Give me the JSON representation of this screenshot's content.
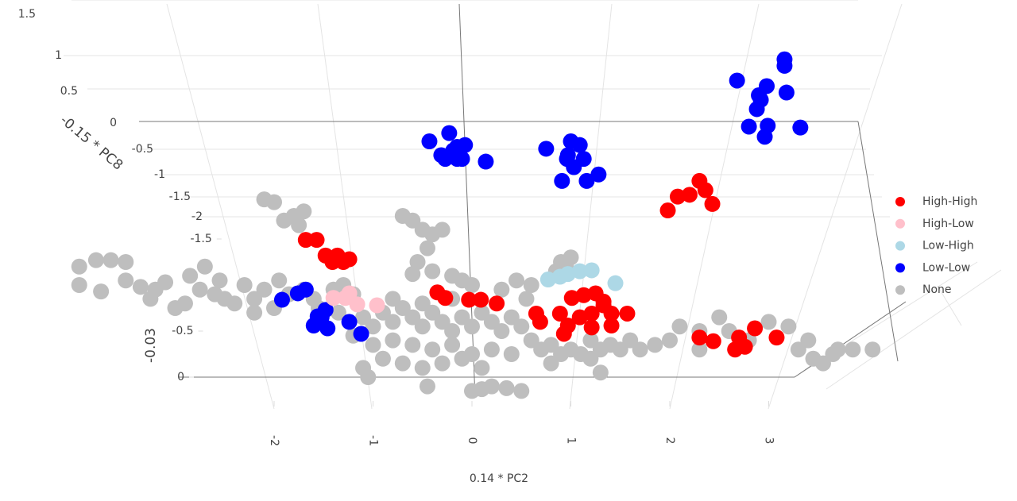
{
  "chart_data": {
    "type": "scatter",
    "x_label": "0.14 * PC2",
    "z_label": "-0.15 * PC8",
    "y_label": "-0.03",
    "xlim": [
      -4.5,
      5
    ],
    "ylim": [
      0.4,
      -4
    ],
    "xticks": [
      -2,
      -1,
      0,
      1,
      2,
      3
    ],
    "yticks": [
      -1.5,
      -0.5,
      0
    ],
    "zticks": [
      1.5,
      1,
      0.5,
      0,
      -0.5,
      -1,
      -1.5,
      -2
    ],
    "legend": "right",
    "series": [
      {
        "name": "High-High",
        "color": "#ff0000",
        "x": [
          2.3,
          2.08,
          2.2,
          2.36,
          2.43,
          1.98,
          -1.68,
          -1.57,
          -1.48,
          -1.36,
          -1.24,
          -1.41,
          -1.3,
          -0.35,
          -0.27,
          -0.03,
          0.09,
          0.25,
          1.01,
          1.13,
          1.25,
          1.33,
          1.21,
          1.09,
          0.89,
          1.41,
          1.57,
          0.97,
          1.21,
          1.41,
          0.65,
          0.69,
          0.93,
          1.33,
          2.3,
          2.44,
          2.66,
          2.76,
          2.86,
          3.08,
          2.7
        ],
        "values": [
          -2.13,
          -1.96,
          -1.98,
          -2.03,
          -1.88,
          -1.81,
          -1.49,
          -1.49,
          -1.32,
          -1.32,
          -1.28,
          -1.25,
          -1.25,
          -0.92,
          -0.86,
          -0.84,
          -0.84,
          -0.8,
          -0.86,
          -0.89,
          -0.91,
          -0.82,
          -0.69,
          -0.65,
          -0.69,
          -0.69,
          -0.69,
          -0.56,
          -0.54,
          -0.56,
          -0.69,
          -0.6,
          -0.47,
          -0.78,
          -0.43,
          -0.39,
          -0.3,
          -0.33,
          -0.53,
          -0.43,
          -0.43
        ]
      },
      {
        "name": "High-Low",
        "color": "#ffc0cb",
        "x": [
          -1.4,
          -1.28,
          -1.16,
          -0.96,
          -1.24
        ],
        "values": [
          -0.86,
          -0.86,
          -0.79,
          -0.78,
          -0.91
        ]
      },
      {
        "name": "Low-High",
        "color": "#add8e6",
        "x": [
          0.77,
          0.89,
          0.97,
          1.09,
          1.21,
          1.45
        ],
        "values": [
          -1.06,
          -1.09,
          -1.12,
          -1.15,
          -1.16,
          -1.02
        ]
      },
      {
        "name": "Low-Low",
        "color": "#0000ff",
        "x": [
          -0.43,
          -0.23,
          -0.15,
          -0.07,
          -0.27,
          -0.15,
          -0.1,
          0.14,
          -0.19,
          -0.31,
          0.75,
          1.0,
          1.09,
          0.96,
          1.13,
          1.03,
          1.28,
          0.91,
          1.16,
          0.97,
          2.68,
          3.16,
          3.16,
          2.98,
          2.9,
          3.18,
          2.88,
          2.8,
          2.99,
          2.96,
          3.32,
          2.92,
          -1.92,
          -1.76,
          -1.68,
          -1.48,
          -1.52,
          -1.6,
          -1.46,
          -1.24,
          -1.12,
          -1.56
        ],
        "values": [
          -2.56,
          -2.65,
          -2.5,
          -2.52,
          -2.37,
          -2.37,
          -2.37,
          -2.34,
          -2.46,
          -2.41,
          -2.48,
          -2.56,
          -2.52,
          -2.37,
          -2.37,
          -2.28,
          -2.2,
          -2.13,
          -2.13,
          -2.41,
          -3.22,
          -3.45,
          -3.38,
          -3.16,
          -3.06,
          -3.09,
          -2.91,
          -2.72,
          -2.73,
          -2.61,
          -2.71,
          -3.01,
          -0.84,
          -0.91,
          -0.95,
          -0.73,
          -0.65,
          -0.56,
          -0.53,
          -0.6,
          -0.47,
          -0.66
        ]
      },
      {
        "name": "None",
        "color": "#bebebe",
        "x": [
          -2.1,
          -2.0,
          -1.8,
          -1.7,
          -1.75,
          -1.9,
          -3.97,
          -3.8,
          -3.65,
          -3.5,
          -3.97,
          -3.75,
          -3.5,
          -3.35,
          -3.1,
          -3.2,
          -3.25,
          -3.0,
          -2.9,
          -2.85,
          -2.7,
          -2.75,
          -2.55,
          -2.5,
          -2.3,
          -2.6,
          -2.4,
          -2.2,
          -2.1,
          -2.0,
          -2.2,
          -1.95,
          -1.85,
          -1.7,
          -1.6,
          -1.4,
          -1.3,
          -1.2,
          -1.55,
          -1.35,
          -0.7,
          -0.6,
          -0.5,
          -0.4,
          -0.3,
          -0.45,
          -0.55,
          -0.6,
          -0.4,
          -0.2,
          -0.1,
          0.0,
          -1.1,
          -1.0,
          -0.9,
          -0.8,
          -0.7,
          -0.6,
          -0.5,
          -0.4,
          -0.3,
          -0.2,
          -0.1,
          0.0,
          0.1,
          0.2,
          0.3,
          0.4,
          0.5,
          -0.8,
          -0.6,
          -0.4,
          -0.2,
          0.0,
          0.2,
          0.4,
          -1.2,
          -1.0,
          -0.9,
          -0.7,
          -0.5,
          -0.3,
          -0.1,
          0.1,
          -0.8,
          -0.5,
          -0.2,
          -1.1,
          -1.05,
          -0.45,
          0.0,
          0.1,
          0.2,
          0.35,
          0.5,
          0.6,
          0.7,
          0.8,
          0.9,
          1.0,
          1.1,
          1.2,
          1.3,
          1.4,
          1.5,
          1.6,
          1.7,
          1.85,
          2.0,
          1.2,
          0.8,
          1.3,
          0.3,
          0.45,
          0.6,
          0.55,
          0.9,
          1.0,
          0.95,
          0.85,
          2.1,
          2.3,
          2.5,
          2.6,
          2.8,
          3.0,
          3.2,
          3.3,
          3.4,
          3.45,
          3.55,
          3.65,
          3.7,
          3.85,
          4.05,
          2.3
        ],
        "values": [
          -1.93,
          -1.9,
          -1.75,
          -1.8,
          -1.65,
          -1.7,
          -1.2,
          -1.27,
          -1.27,
          -1.25,
          -1.0,
          -0.93,
          -1.05,
          -0.98,
          -1.03,
          -0.95,
          -0.85,
          -0.75,
          -0.8,
          -1.1,
          -1.2,
          -0.95,
          -1.05,
          -0.85,
          -1.0,
          -0.9,
          -0.8,
          -0.85,
          -0.95,
          -0.75,
          -0.7,
          -1.05,
          -0.9,
          -0.95,
          -0.85,
          -0.95,
          -1.0,
          -0.9,
          -0.75,
          -0.7,
          -1.75,
          -1.7,
          -1.6,
          -1.55,
          -1.6,
          -1.4,
          -1.25,
          -1.12,
          -1.15,
          -1.1,
          -1.05,
          -1.0,
          -0.65,
          -0.55,
          -0.7,
          -0.6,
          -0.75,
          -0.65,
          -0.55,
          -0.7,
          -0.6,
          -0.5,
          -0.65,
          -0.55,
          -0.7,
          -0.6,
          -0.5,
          -0.65,
          -0.55,
          -0.4,
          -0.35,
          -0.3,
          -0.35,
          -0.25,
          -0.3,
          -0.25,
          -0.45,
          -0.35,
          -0.2,
          -0.15,
          -0.1,
          -0.15,
          -0.2,
          -0.1,
          -0.85,
          -0.8,
          -0.85,
          -0.1,
          0.0,
          0.1,
          0.15,
          0.13,
          0.1,
          0.12,
          0.15,
          -0.4,
          -0.3,
          -0.35,
          -0.25,
          -0.3,
          -0.25,
          -0.4,
          -0.3,
          -0.35,
          -0.3,
          -0.4,
          -0.3,
          -0.35,
          -0.4,
          -0.2,
          -0.15,
          -0.05,
          -0.95,
          -1.05,
          -1.0,
          -0.85,
          -1.25,
          -1.3,
          -1.2,
          -1.15,
          -0.55,
          -0.5,
          -0.65,
          -0.5,
          -0.4,
          -0.6,
          -0.55,
          -0.3,
          -0.4,
          -0.2,
          -0.15,
          -0.25,
          -0.3,
          -0.3,
          -0.3,
          -0.3
        ]
      }
    ]
  }
}
